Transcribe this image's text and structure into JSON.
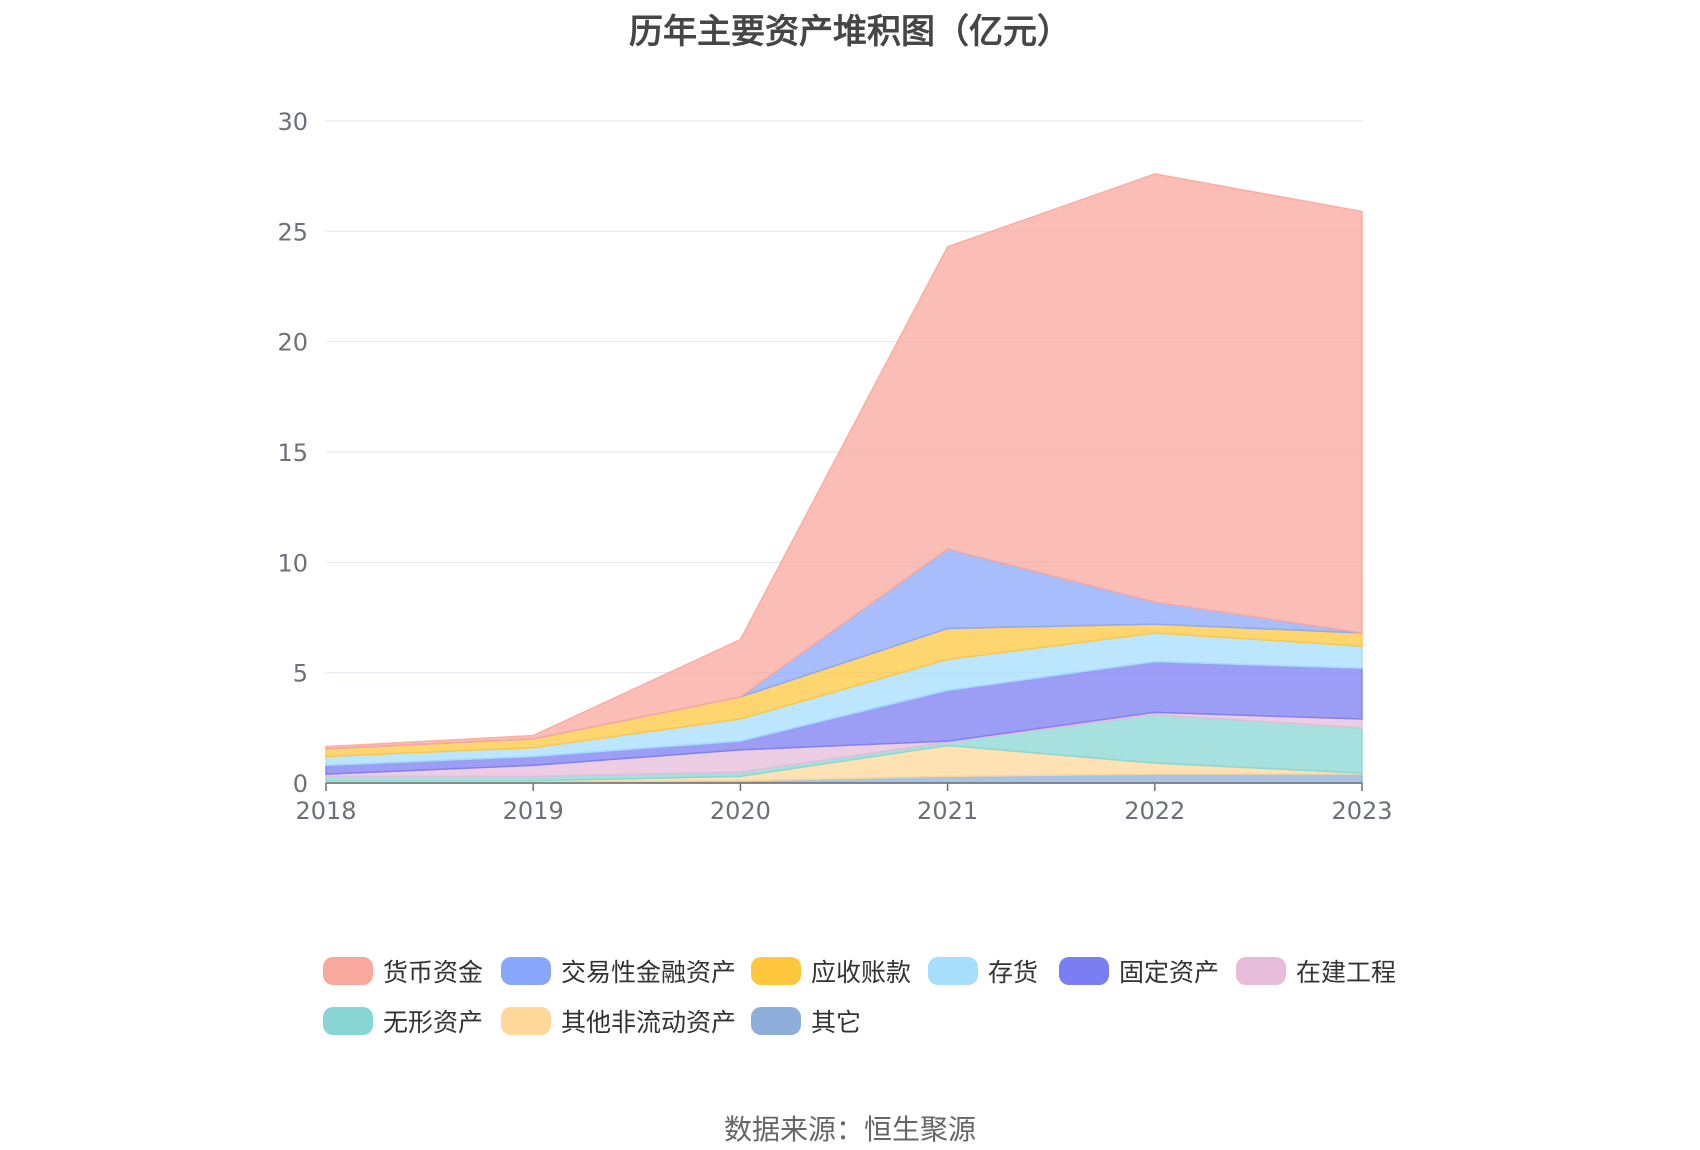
{
  "chart_data": {
    "type": "area",
    "stacked": true,
    "title": "历年主要资产堆积图（亿元）",
    "xlabel": "",
    "ylabel": "",
    "ylim": [
      0,
      30
    ],
    "yticks": [
      "0",
      "5",
      "10",
      "15",
      "20",
      "25",
      "30"
    ],
    "categories": [
      "2018",
      "2019",
      "2020",
      "2021",
      "2022",
      "2023"
    ],
    "legend_position": "bottom",
    "grid": true,
    "series": [
      {
        "name": "其它",
        "color": "#8eaedb",
        "values": [
          0.05,
          0.05,
          0.1,
          0.3,
          0.4,
          0.4
        ]
      },
      {
        "name": "其他非流动资产",
        "color": "#fdd89a",
        "values": [
          0.05,
          0.05,
          0.2,
          1.4,
          0.5,
          0.05
        ]
      },
      {
        "name": "无形资产",
        "color": "#88d6d4",
        "values": [
          0.2,
          0.2,
          0.2,
          0.15,
          2.2,
          2.05
        ]
      },
      {
        "name": "在建工程",
        "color": "#e7bcdb",
        "values": [
          0.1,
          0.5,
          1.0,
          0.05,
          0.1,
          0.4
        ]
      },
      {
        "name": "固定资产",
        "color": "#7b7df2",
        "values": [
          0.4,
          0.4,
          0.4,
          2.3,
          2.3,
          2.3
        ]
      },
      {
        "name": "存货",
        "color": "#a6defc",
        "values": [
          0.4,
          0.4,
          1.0,
          1.4,
          1.3,
          1.0
        ]
      },
      {
        "name": "应收账款",
        "color": "#fec73e",
        "values": [
          0.35,
          0.4,
          1.0,
          1.4,
          0.4,
          0.6
        ]
      },
      {
        "name": "交易性金融资产",
        "color": "#89a7fb",
        "values": [
          0.0,
          0.0,
          0.0,
          3.6,
          1.0,
          0.0
        ]
      },
      {
        "name": "货币资金",
        "color": "#f9a89e",
        "values": [
          0.1,
          0.15,
          2.6,
          13.7,
          19.4,
          19.1
        ]
      }
    ]
  },
  "legend": {
    "items": [
      {
        "label": "货币资金",
        "color": "#f9a89e"
      },
      {
        "label": "交易性金融资产",
        "color": "#89a7fb"
      },
      {
        "label": "应收账款",
        "color": "#fec73e"
      },
      {
        "label": "存货",
        "color": "#a6defc"
      },
      {
        "label": "固定资产",
        "color": "#7b7df2"
      },
      {
        "label": "在建工程",
        "color": "#e7bcdb"
      },
      {
        "label": "无形资产",
        "color": "#88d6d4"
      },
      {
        "label": "其他非流动资产",
        "color": "#fdd89a"
      },
      {
        "label": "其它",
        "color": "#8eaedb"
      }
    ]
  },
  "source": "数据来源：恒生聚源"
}
